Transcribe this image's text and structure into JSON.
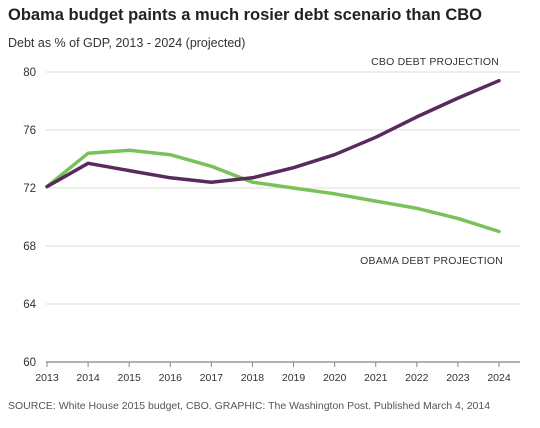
{
  "header": {
    "title": "Obama budget paints a much rosier debt scenario than CBO",
    "subtitle": "Debt as % of GDP, 2013 - 2024 (projected)"
  },
  "footer": {
    "source": "SOURCE: White House 2015 budget, CBO. GRAPHIC: The Washington Post. Published March 4, 2014"
  },
  "chart_data": {
    "type": "line",
    "title": "Obama budget paints a much rosier debt scenario than CBO",
    "subtitle": "Debt as % of GDP, 2013 - 2024 (projected)",
    "x": [
      2013,
      2014,
      2015,
      2016,
      2017,
      2018,
      2019,
      2020,
      2021,
      2022,
      2023,
      2024
    ],
    "ylim": [
      60,
      80
    ],
    "yticks": [
      60,
      64,
      68,
      72,
      76,
      80
    ],
    "grid": true,
    "series": [
      {
        "name": "CBO DEBT PROJECTION",
        "color": "#5a2a5e",
        "values": [
          72.1,
          73.7,
          73.2,
          72.7,
          72.4,
          72.7,
          73.4,
          74.3,
          75.5,
          76.9,
          78.2,
          79.4
        ]
      },
      {
        "name": "OBAMA DEBT PROJECTION",
        "color": "#78c25a",
        "values": [
          72.1,
          74.4,
          74.6,
          74.3,
          73.5,
          72.4,
          72.0,
          71.6,
          71.1,
          70.6,
          69.9,
          69.0
        ]
      }
    ]
  }
}
